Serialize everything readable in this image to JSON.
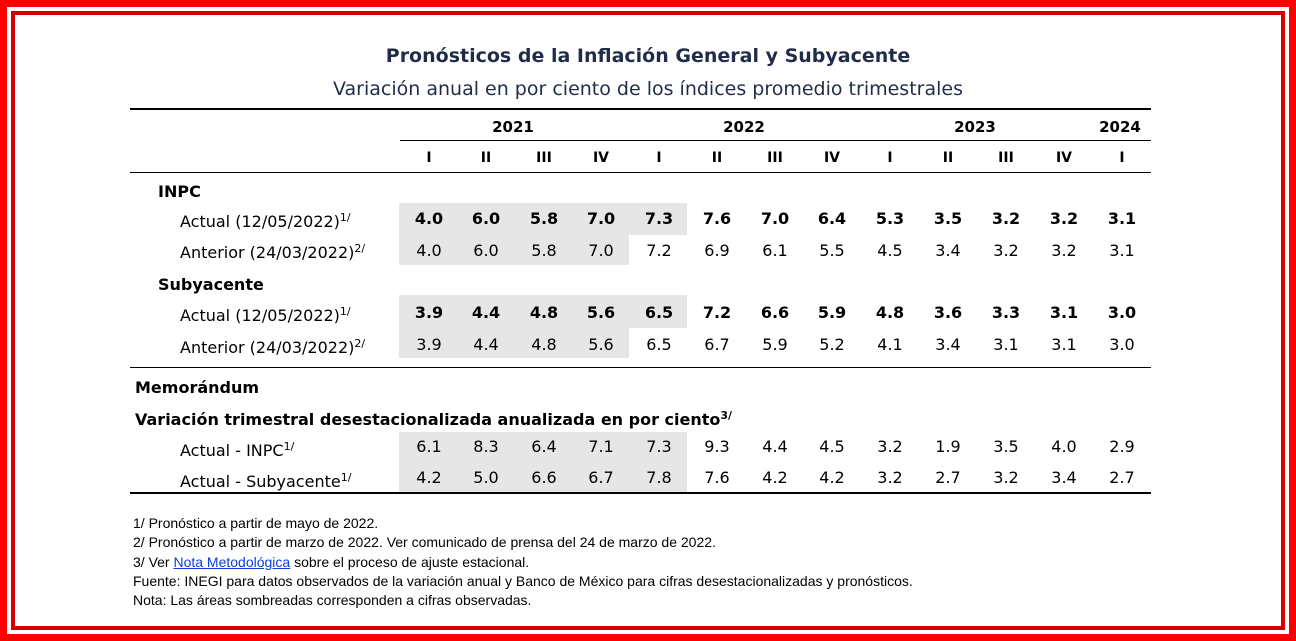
{
  "title": "Pronósticos de la Inflación General y Subyacente",
  "subtitle": "Variación anual en por ciento de los índices promedio trimestrales",
  "years": [
    "2021",
    "2022",
    "2023",
    "2024"
  ],
  "quarters": [
    "I",
    "II",
    "III",
    "IV",
    "I",
    "II",
    "III",
    "IV",
    "I",
    "II",
    "III",
    "IV",
    "I"
  ],
  "sections": {
    "inpc": "INPC",
    "subyacente": "Subyacente",
    "memorandum": "Memorándum",
    "variacion": "Variación trimestral desestacionalizada anualizada en por ciento",
    "variacion_sup": "3/"
  },
  "rows": [
    {
      "label": "Actual (12/05/2022)",
      "sup": "1/",
      "values": [
        "4.0",
        "6.0",
        "5.8",
        "7.0",
        "7.3",
        "7.6",
        "7.0",
        "6.4",
        "5.3",
        "3.5",
        "3.2",
        "3.2",
        "3.1"
      ],
      "bold": true
    },
    {
      "label": "Anterior (24/03/2022)",
      "sup": "2/",
      "values": [
        "4.0",
        "6.0",
        "5.8",
        "7.0",
        "7.2",
        "6.9",
        "6.1",
        "5.5",
        "4.5",
        "3.4",
        "3.2",
        "3.2",
        "3.1"
      ],
      "bold": false
    },
    {
      "label": "Actual (12/05/2022)",
      "sup": "1/",
      "values": [
        "3.9",
        "4.4",
        "4.8",
        "5.6",
        "6.5",
        "7.2",
        "6.6",
        "5.9",
        "4.8",
        "3.6",
        "3.3",
        "3.1",
        "3.0"
      ],
      "bold": true
    },
    {
      "label": "Anterior (24/03/2022)",
      "sup": "2/",
      "values": [
        "3.9",
        "4.4",
        "4.8",
        "5.6",
        "6.5",
        "6.7",
        "5.9",
        "5.2",
        "4.1",
        "3.4",
        "3.1",
        "3.1",
        "3.0"
      ],
      "bold": false
    },
    {
      "label": "Actual - INPC",
      "sup": "1/",
      "values": [
        "6.1",
        "8.3",
        "6.4",
        "7.1",
        "7.3",
        "9.3",
        "4.4",
        "4.5",
        "3.2",
        "1.9",
        "3.5",
        "4.0",
        "2.9"
      ],
      "bold": false
    },
    {
      "label": "Actual - Subyacente",
      "sup": "1/",
      "values": [
        "4.2",
        "5.0",
        "6.6",
        "6.7",
        "7.8",
        "7.6",
        "4.2",
        "4.2",
        "3.2",
        "2.7",
        "3.2",
        "3.4",
        "2.7"
      ],
      "bold": false
    }
  ],
  "footnotes": {
    "n1": "1/ Pronóstico a partir de mayo de 2022.",
    "n2": "2/ Pronóstico a partir de marzo de 2022. Ver comunicado de prensa del 24 de marzo de 2022.",
    "n3_pre": "3/ Ver ",
    "n3_link": "Nota Metodológica",
    "n3_post": " sobre el proceso de ajuste estacional.",
    "fuente": "Fuente: INEGI para datos observados de la variación anual y Banco de México para cifras desestacionalizadas y pronósticos.",
    "nota": "Nota: Las áreas sombreadas corresponden a cifras observadas."
  },
  "colors": {
    "frame": "#ff0000",
    "title": "#1f2d4a",
    "shade": "#e6e6e6",
    "link": "#0b3fd8"
  }
}
